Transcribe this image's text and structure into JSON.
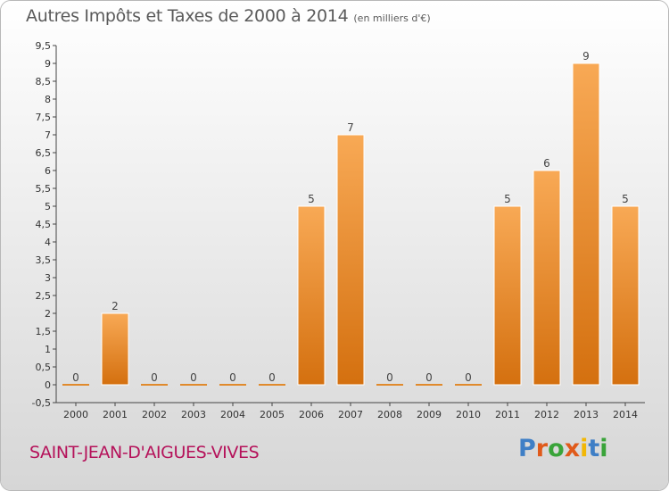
{
  "title": "Autres Impôts et Taxes de 2000 à 2014",
  "subtitle": "(en milliers d'€)",
  "commune": "SAINT-JEAN-D'AIGUES-VIVES",
  "logo": {
    "text": "Proxiti",
    "letters": [
      "P",
      "r",
      "o",
      "x",
      "i",
      "t",
      "i"
    ],
    "colors": [
      "#3f7fc6",
      "#e05a1a",
      "#3aa43a",
      "#e05a1a",
      "#f2b705",
      "#3f7fc6",
      "#3aa43a"
    ]
  },
  "colors": {
    "bar_light": "#f7a650",
    "bar_dark": "#d66f12",
    "background_top": "#ffffff",
    "background_bottom": "#dcdcdc",
    "commune_text": "#b5125a"
  },
  "chart_data": {
    "type": "bar",
    "title": "Autres Impôts et Taxes de 2000 à 2014",
    "subtitle": "(en milliers d'€)",
    "categories": [
      "2000",
      "2001",
      "2002",
      "2003",
      "2004",
      "2005",
      "2006",
      "2007",
      "2008",
      "2009",
      "2010",
      "2011",
      "2012",
      "2013",
      "2014"
    ],
    "values": [
      0,
      2,
      0,
      0,
      0,
      0,
      5,
      7,
      0,
      0,
      0,
      5,
      6,
      9,
      5
    ],
    "ylim": [
      -0.5,
      9.5
    ],
    "yticks": [
      "-0,5",
      "0",
      "0,5",
      "1",
      "1,5",
      "2",
      "2,5",
      "3",
      "3,5",
      "4",
      "4,5",
      "5",
      "5,5",
      "6",
      "6,5",
      "7",
      "7,5",
      "8",
      "8,5",
      "9",
      "9,5"
    ],
    "grid": false,
    "legend": "none"
  }
}
